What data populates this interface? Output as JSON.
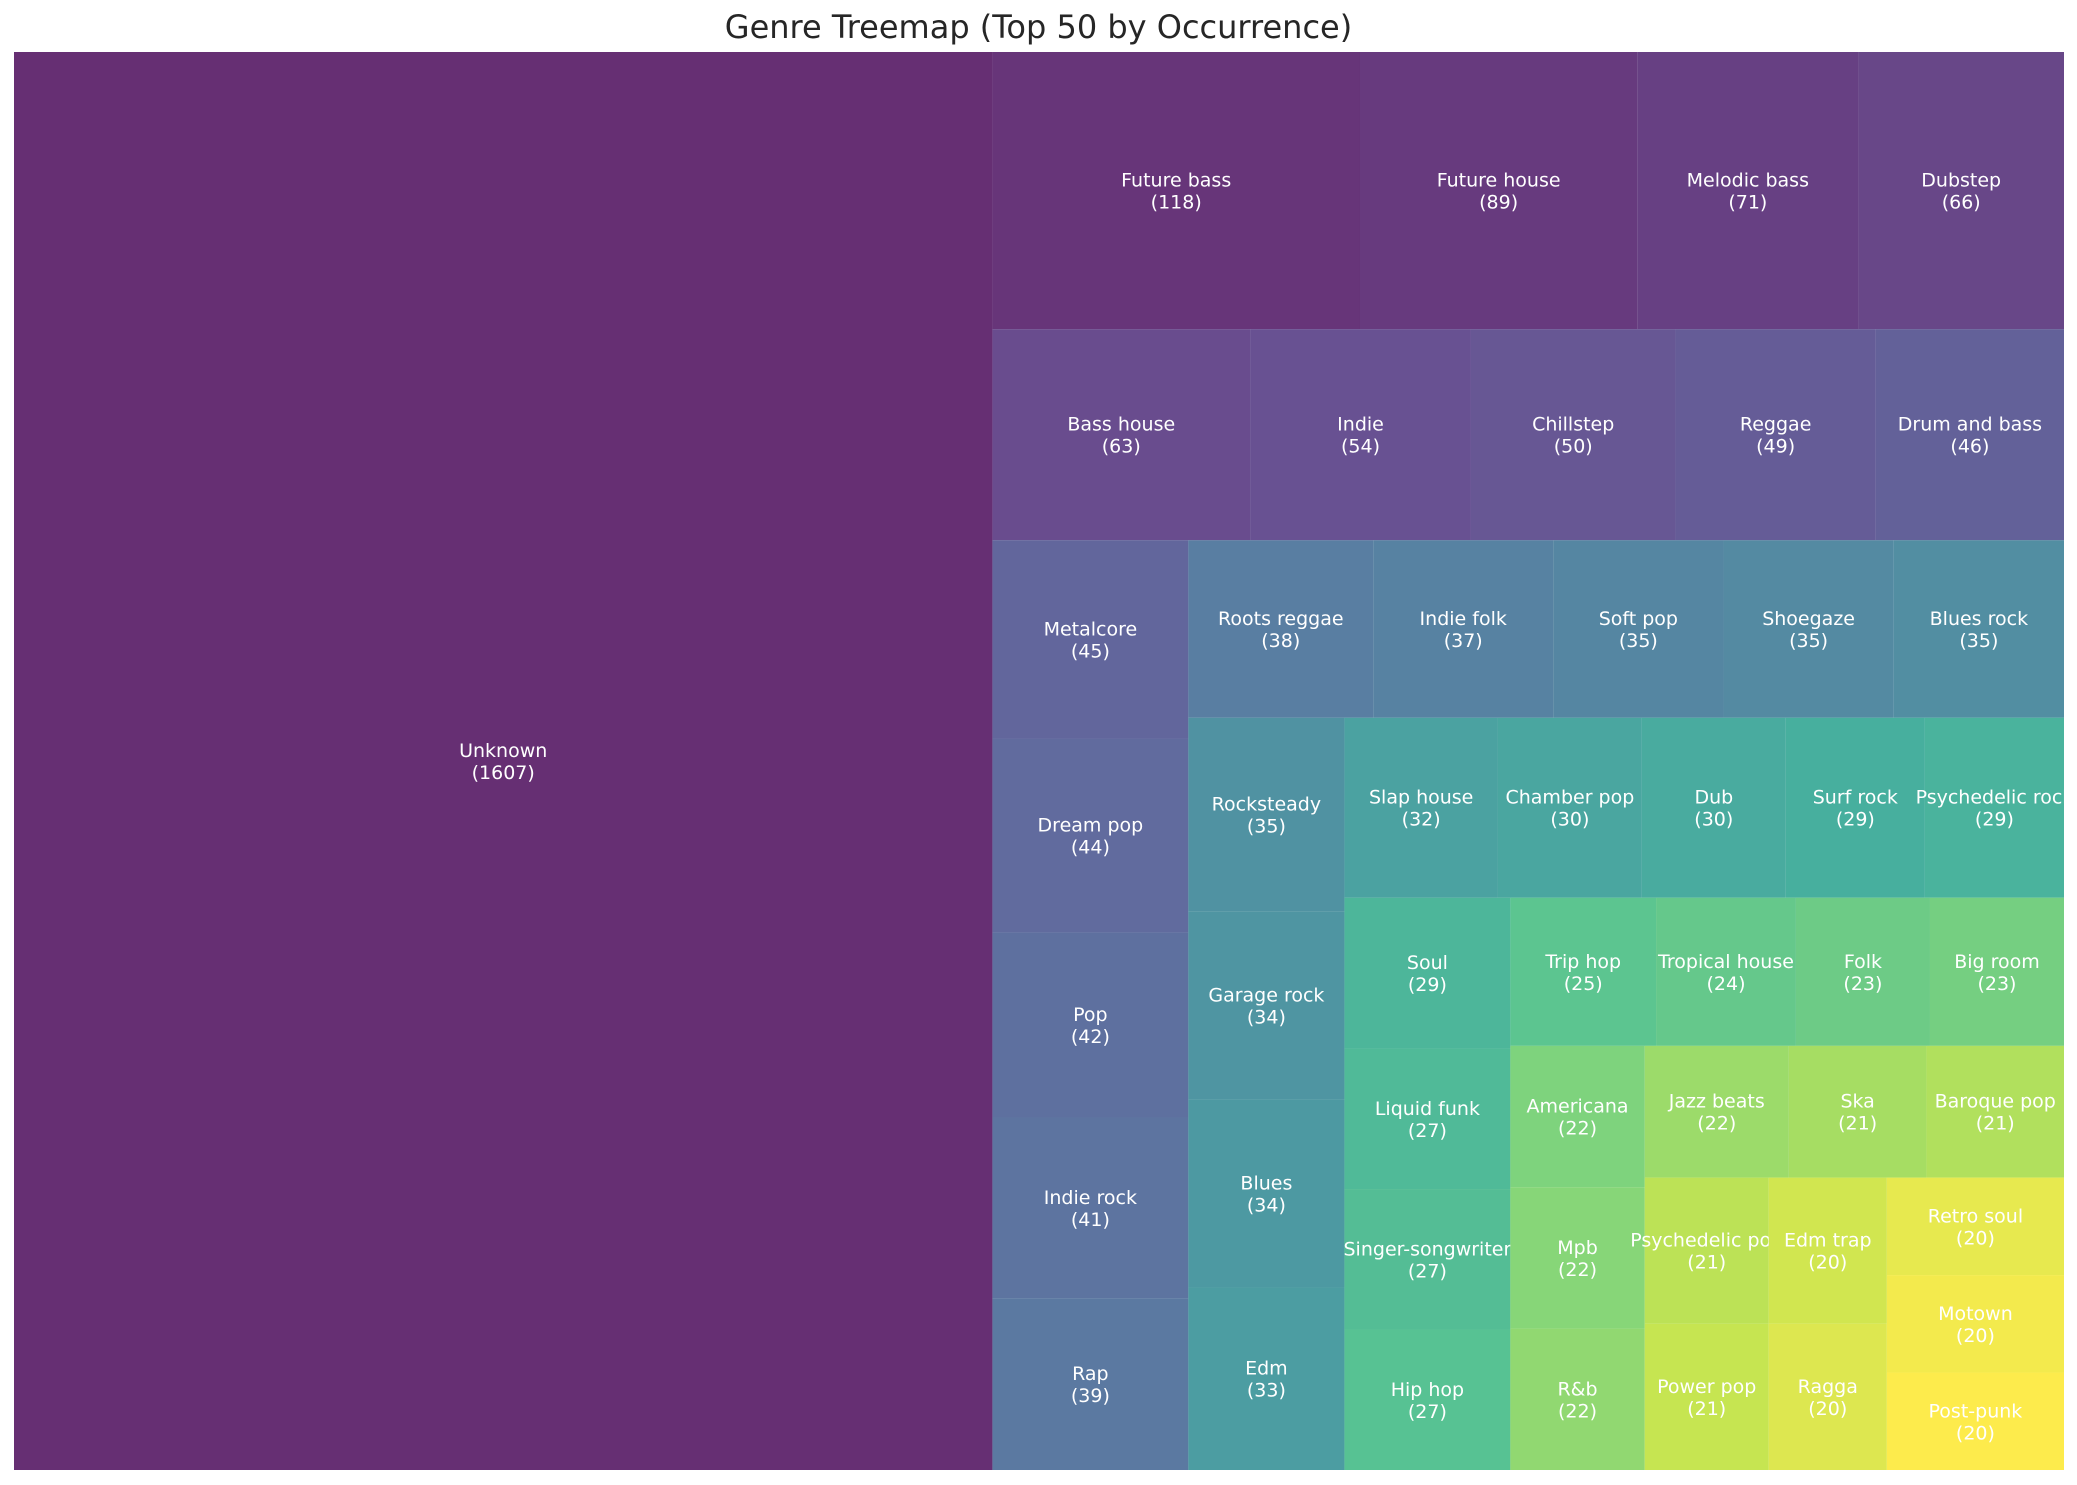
{
  "chart_data": {
    "type": "treemap",
    "title": "Genre Treemap (Top 50 by Occurrence)",
    "colormap": "viridis",
    "items": [
      {
        "label": "Unknown",
        "value": 1607
      },
      {
        "label": "Future bass",
        "value": 118
      },
      {
        "label": "Future house",
        "value": 89
      },
      {
        "label": "Melodic bass",
        "value": 71
      },
      {
        "label": "Dubstep",
        "value": 66
      },
      {
        "label": "Bass house",
        "value": 63
      },
      {
        "label": "Indie",
        "value": 54
      },
      {
        "label": "Chillstep",
        "value": 50
      },
      {
        "label": "Reggae",
        "value": 49
      },
      {
        "label": "Drum and bass",
        "value": 46
      },
      {
        "label": "Metalcore",
        "value": 45
      },
      {
        "label": "Dream pop",
        "value": 44
      },
      {
        "label": "Pop",
        "value": 42
      },
      {
        "label": "Indie rock",
        "value": 41
      },
      {
        "label": "Rap",
        "value": 39
      },
      {
        "label": "Roots reggae",
        "value": 38
      },
      {
        "label": "Indie folk",
        "value": 37
      },
      {
        "label": "Soft pop",
        "value": 35
      },
      {
        "label": "Shoegaze",
        "value": 35
      },
      {
        "label": "Blues rock",
        "value": 35
      },
      {
        "label": "Rocksteady",
        "value": 35
      },
      {
        "label": "Garage rock",
        "value": 34
      },
      {
        "label": "Blues",
        "value": 34
      },
      {
        "label": "Edm",
        "value": 33
      },
      {
        "label": "Slap house",
        "value": 32
      },
      {
        "label": "Chamber pop",
        "value": 30
      },
      {
        "label": "Dub",
        "value": 30
      },
      {
        "label": "Surf rock",
        "value": 29
      },
      {
        "label": "Psychedelic rock",
        "value": 29
      },
      {
        "label": "Soul",
        "value": 29
      },
      {
        "label": "Liquid funk",
        "value": 27
      },
      {
        "label": "Singer-songwriter",
        "value": 27
      },
      {
        "label": "Hip hop",
        "value": 27
      },
      {
        "label": "Trip hop",
        "value": 25
      },
      {
        "label": "Tropical house",
        "value": 24
      },
      {
        "label": "Folk",
        "value": 23
      },
      {
        "label": "Big room",
        "value": 23
      },
      {
        "label": "Americana",
        "value": 22
      },
      {
        "label": "Mpb",
        "value": 22
      },
      {
        "label": "R&b",
        "value": 22
      },
      {
        "label": "Jazz beats",
        "value": 22
      },
      {
        "label": "Ska",
        "value": 21
      },
      {
        "label": "Baroque pop",
        "value": 21
      },
      {
        "label": "Psychedelic pop",
        "value": 21
      },
      {
        "label": "Power pop",
        "value": 21
      },
      {
        "label": "Edm trap",
        "value": 20
      },
      {
        "label": "Ragga",
        "value": 20
      },
      {
        "label": "Retro soul",
        "value": 20
      },
      {
        "label": "Motown",
        "value": 20
      },
      {
        "label": "Post-punk",
        "value": 20
      }
    ]
  }
}
